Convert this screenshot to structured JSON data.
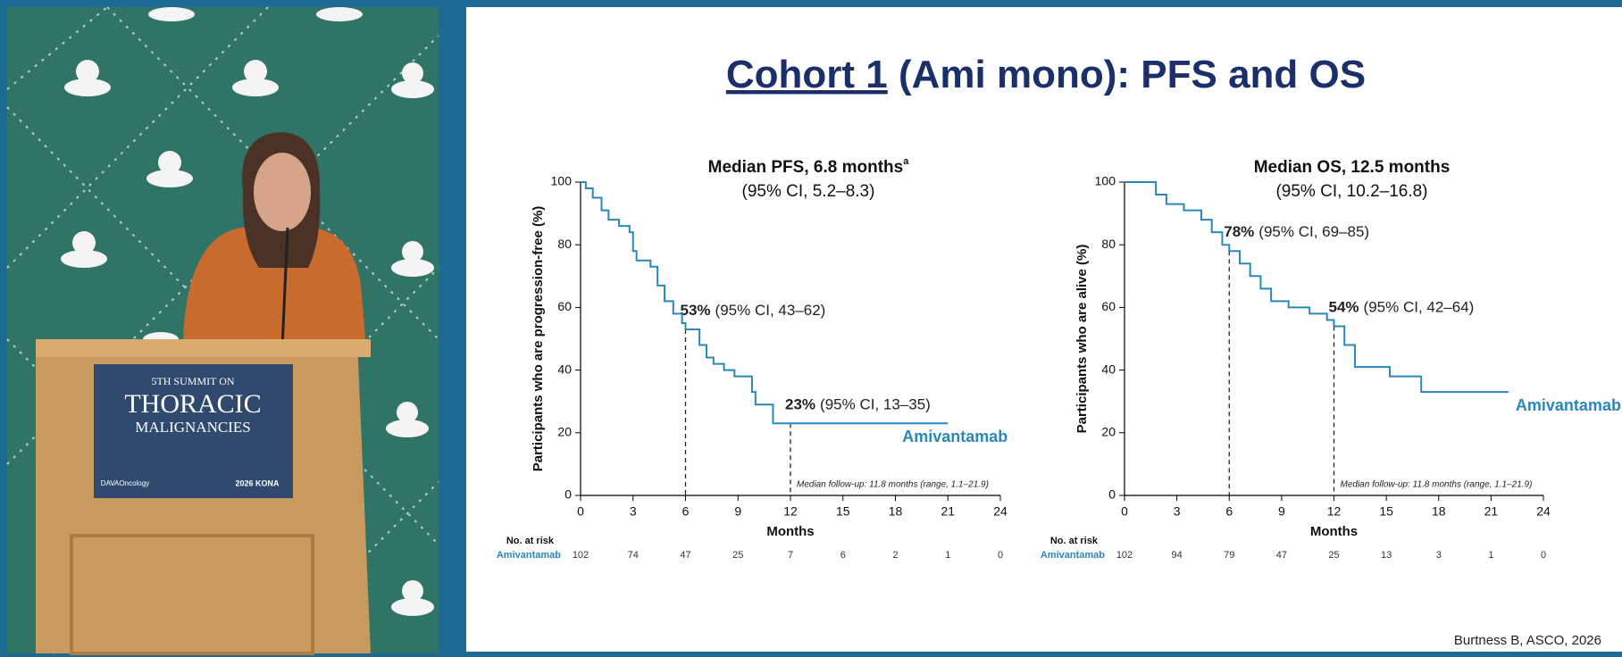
{
  "slide": {
    "title": {
      "underlined": "Cohort 1",
      "rest": " (Ami mono): PFS and OS"
    },
    "footer": "Burtness B, ASCO, 2026"
  },
  "video": {
    "podium_sign": {
      "line1": "5TH SUMMIT ON",
      "line2": "THORACIC",
      "line3": "MALIGNANCIES",
      "logo_left": "DAVAOncology",
      "logo_right": "2026 KONA"
    }
  },
  "chart_data": [
    {
      "type": "line",
      "title": "Median PFS, 6.8 months",
      "title_note": "a",
      "subtitle": "(95% CI, 5.2–8.3)",
      "xlabel": "Months",
      "ylabel": "Participants who are progression-free (%)",
      "xlim": [
        0,
        24
      ],
      "ylim": [
        0,
        100
      ],
      "xticks": [
        0,
        3,
        6,
        9,
        12,
        15,
        18,
        21,
        24
      ],
      "yticks": [
        0,
        20,
        40,
        60,
        80,
        100
      ],
      "x": [
        0,
        0.3,
        0.3,
        0.7,
        0.7,
        1.2,
        1.2,
        1.6,
        1.6,
        2.2,
        2.2,
        2.8,
        2.8,
        3.0,
        3.0,
        3.2,
        3.2,
        4.0,
        4.0,
        4.4,
        4.4,
        4.8,
        4.8,
        5.3,
        5.3,
        5.8,
        5.8,
        6.0,
        6.0,
        6.8,
        6.8,
        7.2,
        7.2,
        7.6,
        7.6,
        8.2,
        8.2,
        8.8,
        8.8,
        9.8,
        9.8,
        10.0,
        10.0,
        11.0,
        11.0,
        21
      ],
      "series": [
        {
          "name": "Amivantamab",
          "color": "#2b87b9",
          "values": [
            100,
            100,
            98,
            98,
            95,
            95,
            91,
            91,
            88,
            88,
            86,
            86,
            84,
            84,
            78,
            78,
            75,
            75,
            73,
            73,
            67,
            67,
            62,
            62,
            58,
            58,
            55,
            55,
            53,
            53,
            48,
            48,
            44,
            44,
            42,
            42,
            40,
            40,
            38,
            38,
            33,
            33,
            29,
            29,
            23,
            23
          ]
        }
      ],
      "landmarks": [
        {
          "x": 6,
          "y": 53,
          "label": "53%",
          "ci": "(95% CI, 43–62)"
        },
        {
          "x": 12,
          "y": 23,
          "label": "23%",
          "ci": "(95% CI, 13–35)"
        }
      ],
      "note": "Median follow-up: 11.8 months (range, 1.1–21.9)",
      "risk_table": {
        "header": "No. at risk",
        "label": "Amivantamab",
        "values": [
          102,
          74,
          47,
          25,
          7,
          6,
          2,
          1,
          0
        ]
      }
    },
    {
      "type": "line",
      "title": "Median OS, 12.5 months",
      "subtitle": "(95% CI, 10.2–16.8)",
      "xlabel": "Months",
      "ylabel": "Participants who are alive (%)",
      "xlim": [
        0,
        24
      ],
      "ylim": [
        0,
        100
      ],
      "xticks": [
        0,
        3,
        6,
        9,
        12,
        15,
        18,
        21,
        24
      ],
      "yticks": [
        0,
        20,
        40,
        60,
        80,
        100
      ],
      "x": [
        0,
        1.8,
        1.8,
        2.4,
        2.4,
        3.4,
        3.4,
        4.4,
        4.4,
        5.0,
        5.0,
        5.6,
        5.6,
        6.0,
        6.0,
        6.6,
        6.6,
        7.2,
        7.2,
        7.8,
        7.8,
        8.4,
        8.4,
        9.4,
        9.4,
        10.6,
        10.6,
        11.6,
        11.6,
        12.0,
        12.0,
        12.6,
        12.6,
        13.2,
        13.2,
        15.2,
        15.2,
        17.0,
        17.0,
        22
      ],
      "series": [
        {
          "name": "Amivantamab",
          "color": "#2b87b9",
          "values": [
            100,
            100,
            96,
            96,
            93,
            93,
            91,
            91,
            88,
            88,
            84,
            84,
            80,
            80,
            78,
            78,
            74,
            74,
            70,
            70,
            66,
            66,
            62,
            62,
            60,
            60,
            58,
            58,
            56,
            56,
            54,
            54,
            48,
            48,
            41,
            41,
            38,
            38,
            33,
            33
          ]
        }
      ],
      "landmarks": [
        {
          "x": 6,
          "y": 78,
          "label": "78%",
          "ci": "(95% CI, 69–85)"
        },
        {
          "x": 12,
          "y": 54,
          "label": "54%",
          "ci": "(95% CI, 42–64)"
        }
      ],
      "note": "Median follow-up: 11.8 months (range, 1.1–21.9)",
      "risk_table": {
        "header": "No. at risk",
        "label": "Amivantamab",
        "values": [
          102,
          94,
          79,
          47,
          25,
          13,
          3,
          1,
          0
        ]
      }
    }
  ]
}
